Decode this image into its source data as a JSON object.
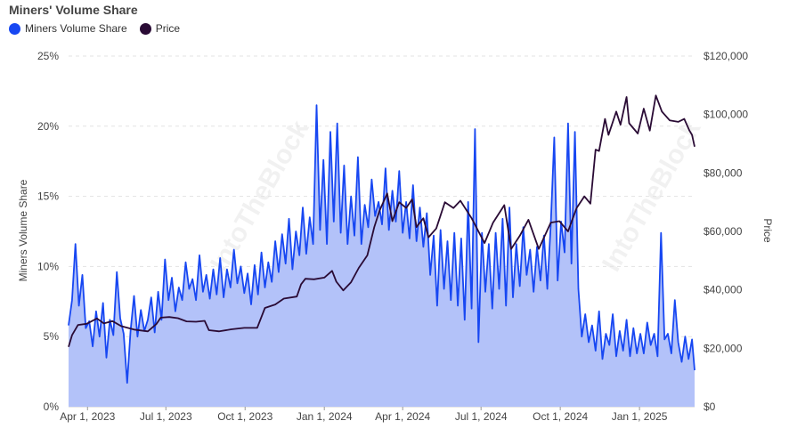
{
  "chart_data": {
    "type": "line",
    "title": "Miners' Volume Share",
    "watermark": "IntoTheBlock",
    "ylabel_left": "Miners Volume Share",
    "ylabel_right": "Price",
    "x_ticks": [
      "Apr 1, 2023",
      "Jul 1, 2023",
      "Oct 1, 2023",
      "Jan 1, 2024",
      "Apr 1, 2024",
      "Jul 1, 2024",
      "Oct 1, 2024",
      "Jan 1, 2025"
    ],
    "y_left_ticks": [
      "0%",
      "5%",
      "10%",
      "15%",
      "20%",
      "25%"
    ],
    "y_right_ticks": [
      "$0",
      "$20,000",
      "$40,000",
      "$60,000",
      "$80,000",
      "$100,000",
      "$120,000"
    ],
    "x_range": [
      "2023-03-10",
      "2025-03-06"
    ],
    "ylim_left": [
      0,
      25
    ],
    "ylim_right": [
      0,
      120000
    ],
    "grid": true,
    "legend_position": "top-left",
    "series": [
      {
        "name": "Miners Volume Share",
        "axis": "left",
        "color": "#1747F2",
        "fill": "#B3C2F9",
        "points": [
          [
            "2023-03-10",
            5.8
          ],
          [
            "2023-03-14",
            7.6
          ],
          [
            "2023-03-18",
            11.6
          ],
          [
            "2023-03-22",
            7.2
          ],
          [
            "2023-03-26",
            9.4
          ],
          [
            "2023-03-30",
            5.6
          ],
          [
            "2023-04-03",
            6.1
          ],
          [
            "2023-04-07",
            4.3
          ],
          [
            "2023-04-11",
            6.8
          ],
          [
            "2023-04-15",
            5.0
          ],
          [
            "2023-04-19",
            7.4
          ],
          [
            "2023-04-23",
            3.5
          ],
          [
            "2023-04-27",
            6.2
          ],
          [
            "2023-05-01",
            5.1
          ],
          [
            "2023-05-05",
            9.6
          ],
          [
            "2023-05-09",
            6.3
          ],
          [
            "2023-05-13",
            5.2
          ],
          [
            "2023-05-17",
            1.7
          ],
          [
            "2023-05-21",
            5.4
          ],
          [
            "2023-05-25",
            7.9
          ],
          [
            "2023-05-29",
            5.0
          ],
          [
            "2023-06-02",
            6.9
          ],
          [
            "2023-06-06",
            5.4
          ],
          [
            "2023-06-10",
            6.2
          ],
          [
            "2023-06-14",
            7.8
          ],
          [
            "2023-06-18",
            5.3
          ],
          [
            "2023-06-22",
            8.2
          ],
          [
            "2023-06-26",
            6.2
          ],
          [
            "2023-06-30",
            10.5
          ],
          [
            "2023-07-04",
            7.6
          ],
          [
            "2023-07-08",
            9.2
          ],
          [
            "2023-07-12",
            6.8
          ],
          [
            "2023-07-16",
            8.5
          ],
          [
            "2023-07-20",
            7.6
          ],
          [
            "2023-07-24",
            10.3
          ],
          [
            "2023-07-28",
            8.4
          ],
          [
            "2023-08-01",
            9.1
          ],
          [
            "2023-08-05",
            7.6
          ],
          [
            "2023-08-09",
            10.8
          ],
          [
            "2023-08-13",
            8.2
          ],
          [
            "2023-08-17",
            9.4
          ],
          [
            "2023-08-21",
            7.7
          ],
          [
            "2023-08-25",
            9.8
          ],
          [
            "2023-08-29",
            8.0
          ],
          [
            "2023-09-02",
            10.6
          ],
          [
            "2023-09-06",
            7.8
          ],
          [
            "2023-09-10",
            9.8
          ],
          [
            "2023-09-14",
            8.5
          ],
          [
            "2023-09-18",
            11.2
          ],
          [
            "2023-09-22",
            8.8
          ],
          [
            "2023-09-26",
            10.0
          ],
          [
            "2023-09-30",
            8.1
          ],
          [
            "2023-10-04",
            9.5
          ],
          [
            "2023-10-08",
            7.3
          ],
          [
            "2023-10-12",
            10.1
          ],
          [
            "2023-10-16",
            8.0
          ],
          [
            "2023-10-20",
            11.0
          ],
          [
            "2023-10-24",
            8.5
          ],
          [
            "2023-10-28",
            10.3
          ],
          [
            "2023-11-01",
            8.9
          ],
          [
            "2023-11-05",
            11.8
          ],
          [
            "2023-11-09",
            9.6
          ],
          [
            "2023-11-13",
            12.3
          ],
          [
            "2023-11-17",
            10.2
          ],
          [
            "2023-11-21",
            13.4
          ],
          [
            "2023-11-25",
            9.8
          ],
          [
            "2023-11-29",
            12.5
          ],
          [
            "2023-12-03",
            10.8
          ],
          [
            "2023-12-07",
            14.2
          ],
          [
            "2023-12-11",
            10.9
          ],
          [
            "2023-12-15",
            13.5
          ],
          [
            "2023-12-19",
            11.6
          ],
          [
            "2023-12-23",
            21.5
          ],
          [
            "2023-12-27",
            12.6
          ],
          [
            "2023-12-31",
            17.6
          ],
          [
            "2024-01-04",
            11.6
          ],
          [
            "2024-01-08",
            19.6
          ],
          [
            "2024-01-12",
            13.2
          ],
          [
            "2024-01-16",
            20.2
          ],
          [
            "2024-01-20",
            12.4
          ],
          [
            "2024-01-24",
            17.2
          ],
          [
            "2024-01-28",
            11.6
          ],
          [
            "2024-02-01",
            15.0
          ],
          [
            "2024-02-05",
            12.2
          ],
          [
            "2024-02-09",
            17.8
          ],
          [
            "2024-02-13",
            11.6
          ],
          [
            "2024-02-17",
            14.4
          ],
          [
            "2024-02-21",
            12.8
          ],
          [
            "2024-02-25",
            16.2
          ],
          [
            "2024-02-29",
            13.6
          ],
          [
            "2024-03-04",
            14.6
          ],
          [
            "2024-03-08",
            13.0
          ],
          [
            "2024-03-12",
            17.0
          ],
          [
            "2024-03-16",
            12.6
          ],
          [
            "2024-03-20",
            15.4
          ],
          [
            "2024-03-24",
            13.2
          ],
          [
            "2024-03-28",
            16.8
          ],
          [
            "2024-04-01",
            12.4
          ],
          [
            "2024-04-05",
            14.6
          ],
          [
            "2024-04-09",
            12.0
          ],
          [
            "2024-04-13",
            15.8
          ],
          [
            "2024-04-17",
            11.8
          ],
          [
            "2024-04-21",
            14.2
          ],
          [
            "2024-04-25",
            11.4
          ],
          [
            "2024-04-29",
            13.8
          ],
          [
            "2024-05-03",
            9.4
          ],
          [
            "2024-05-07",
            12.2
          ],
          [
            "2024-05-11",
            7.2
          ],
          [
            "2024-05-15",
            12.6
          ],
          [
            "2024-05-19",
            8.4
          ],
          [
            "2024-05-23",
            11.8
          ],
          [
            "2024-05-27",
            7.6
          ],
          [
            "2024-05-31",
            12.4
          ],
          [
            "2024-06-04",
            7.2
          ],
          [
            "2024-06-08",
            12.0
          ],
          [
            "2024-06-12",
            6.2
          ],
          [
            "2024-06-16",
            14.6
          ],
          [
            "2024-06-20",
            7.0
          ],
          [
            "2024-06-24",
            19.8
          ],
          [
            "2024-06-28",
            4.6
          ],
          [
            "2024-07-02",
            12.4
          ],
          [
            "2024-07-06",
            8.2
          ],
          [
            "2024-07-10",
            11.6
          ],
          [
            "2024-07-14",
            7.0
          ],
          [
            "2024-07-18",
            12.4
          ],
          [
            "2024-07-22",
            8.4
          ],
          [
            "2024-07-26",
            13.4
          ],
          [
            "2024-07-30",
            7.2
          ],
          [
            "2024-08-03",
            14.2
          ],
          [
            "2024-08-07",
            7.8
          ],
          [
            "2024-08-11",
            11.6
          ],
          [
            "2024-08-15",
            8.6
          ],
          [
            "2024-08-19",
            12.8
          ],
          [
            "2024-08-23",
            9.4
          ],
          [
            "2024-08-27",
            11.2
          ],
          [
            "2024-08-31",
            8.2
          ],
          [
            "2024-09-04",
            11.4
          ],
          [
            "2024-09-08",
            9.0
          ],
          [
            "2024-09-12",
            12.2
          ],
          [
            "2024-09-16",
            8.4
          ],
          [
            "2024-09-20",
            13.0
          ],
          [
            "2024-09-24",
            19.2
          ],
          [
            "2024-09-28",
            9.0
          ],
          [
            "2024-10-02",
            13.2
          ],
          [
            "2024-10-06",
            11.0
          ],
          [
            "2024-10-10",
            20.2
          ],
          [
            "2024-10-14",
            10.2
          ],
          [
            "2024-10-18",
            19.6
          ],
          [
            "2024-10-22",
            8.4
          ],
          [
            "2024-10-26",
            5.0
          ],
          [
            "2024-10-30",
            6.6
          ],
          [
            "2024-11-03",
            4.6
          ],
          [
            "2024-11-07",
            5.8
          ],
          [
            "2024-11-11",
            4.0
          ],
          [
            "2024-11-15",
            6.8
          ],
          [
            "2024-11-19",
            3.4
          ],
          [
            "2024-11-23",
            5.2
          ],
          [
            "2024-11-27",
            4.4
          ],
          [
            "2024-12-01",
            6.6
          ],
          [
            "2024-12-05",
            3.6
          ],
          [
            "2024-12-09",
            5.4
          ],
          [
            "2024-12-13",
            4.0
          ],
          [
            "2024-12-17",
            6.2
          ],
          [
            "2024-12-21",
            3.6
          ],
          [
            "2024-12-25",
            5.6
          ],
          [
            "2024-12-29",
            3.8
          ],
          [
            "2025-01-02",
            5.2
          ],
          [
            "2025-01-06",
            3.8
          ],
          [
            "2025-01-10",
            6.0
          ],
          [
            "2025-01-14",
            4.4
          ],
          [
            "2025-01-18",
            5.2
          ],
          [
            "2025-01-22",
            3.6
          ],
          [
            "2025-01-26",
            12.4
          ],
          [
            "2025-01-30",
            4.8
          ],
          [
            "2025-02-03",
            5.2
          ],
          [
            "2025-02-07",
            3.8
          ],
          [
            "2025-02-11",
            7.6
          ],
          [
            "2025-02-15",
            4.6
          ],
          [
            "2025-02-19",
            3.2
          ],
          [
            "2025-02-23",
            5.0
          ],
          [
            "2025-02-27",
            3.4
          ],
          [
            "2025-03-03",
            4.8
          ],
          [
            "2025-03-06",
            2.6
          ]
        ]
      },
      {
        "name": "Price",
        "axis": "right",
        "color": "#2A0B35",
        "points": [
          [
            "2023-03-10",
            20500
          ],
          [
            "2023-03-14",
            24500
          ],
          [
            "2023-03-21",
            28000
          ],
          [
            "2023-03-31",
            28400
          ],
          [
            "2023-04-12",
            30200
          ],
          [
            "2023-04-20",
            28500
          ],
          [
            "2023-04-30",
            29300
          ],
          [
            "2023-05-10",
            27600
          ],
          [
            "2023-05-25",
            26400
          ],
          [
            "2023-06-10",
            25800
          ],
          [
            "2023-06-20",
            28300
          ],
          [
            "2023-06-25",
            30500
          ],
          [
            "2023-07-05",
            30700
          ],
          [
            "2023-07-15",
            30300
          ],
          [
            "2023-07-25",
            29200
          ],
          [
            "2023-08-05",
            29100
          ],
          [
            "2023-08-15",
            29400
          ],
          [
            "2023-08-20",
            26200
          ],
          [
            "2023-09-01",
            25800
          ],
          [
            "2023-09-15",
            26500
          ],
          [
            "2023-09-30",
            27000
          ],
          [
            "2023-10-15",
            27000
          ],
          [
            "2023-10-24",
            33800
          ],
          [
            "2023-11-05",
            35000
          ],
          [
            "2023-11-15",
            37000
          ],
          [
            "2023-11-30",
            37700
          ],
          [
            "2023-12-05",
            41900
          ],
          [
            "2023-12-10",
            43800
          ],
          [
            "2023-12-20",
            43600
          ],
          [
            "2024-01-01",
            44200
          ],
          [
            "2024-01-10",
            46500
          ],
          [
            "2024-01-15",
            42800
          ],
          [
            "2024-01-23",
            39800
          ],
          [
            "2024-02-01",
            42600
          ],
          [
            "2024-02-10",
            47500
          ],
          [
            "2024-02-20",
            51800
          ],
          [
            "2024-02-28",
            61500
          ],
          [
            "2024-03-05",
            67000
          ],
          [
            "2024-03-14",
            73000
          ],
          [
            "2024-03-20",
            63500
          ],
          [
            "2024-03-28",
            70000
          ],
          [
            "2024-04-05",
            68000
          ],
          [
            "2024-04-12",
            71000
          ],
          [
            "2024-04-17",
            61500
          ],
          [
            "2024-04-25",
            64500
          ],
          [
            "2024-05-01",
            58000
          ],
          [
            "2024-05-10",
            61000
          ],
          [
            "2024-05-20",
            70000
          ],
          [
            "2024-05-30",
            68000
          ],
          [
            "2024-06-07",
            70500
          ],
          [
            "2024-06-20",
            64500
          ],
          [
            "2024-07-05",
            56000
          ],
          [
            "2024-07-15",
            63000
          ],
          [
            "2024-07-28",
            69000
          ],
          [
            "2024-08-05",
            54000
          ],
          [
            "2024-08-15",
            58500
          ],
          [
            "2024-08-25",
            64000
          ],
          [
            "2024-09-06",
            54000
          ],
          [
            "2024-09-20",
            63000
          ],
          [
            "2024-09-30",
            63500
          ],
          [
            "2024-10-10",
            60000
          ],
          [
            "2024-10-20",
            68000
          ],
          [
            "2024-10-29",
            72000
          ],
          [
            "2024-11-05",
            69500
          ],
          [
            "2024-11-11",
            88000
          ],
          [
            "2024-11-15",
            87500
          ],
          [
            "2024-11-22",
            98500
          ],
          [
            "2024-11-26",
            93000
          ],
          [
            "2024-12-05",
            101000
          ],
          [
            "2024-12-10",
            96500
          ],
          [
            "2024-12-17",
            106000
          ],
          [
            "2024-12-20",
            97000
          ],
          [
            "2024-12-30",
            93500
          ],
          [
            "2025-01-06",
            102000
          ],
          [
            "2025-01-13",
            94500
          ],
          [
            "2025-01-20",
            106500
          ],
          [
            "2025-01-27",
            101000
          ],
          [
            "2025-02-05",
            98000
          ],
          [
            "2025-02-15",
            97500
          ],
          [
            "2025-02-22",
            98500
          ],
          [
            "2025-02-28",
            94500
          ],
          [
            "2025-03-03",
            93000
          ],
          [
            "2025-03-06",
            89000
          ]
        ]
      }
    ]
  }
}
